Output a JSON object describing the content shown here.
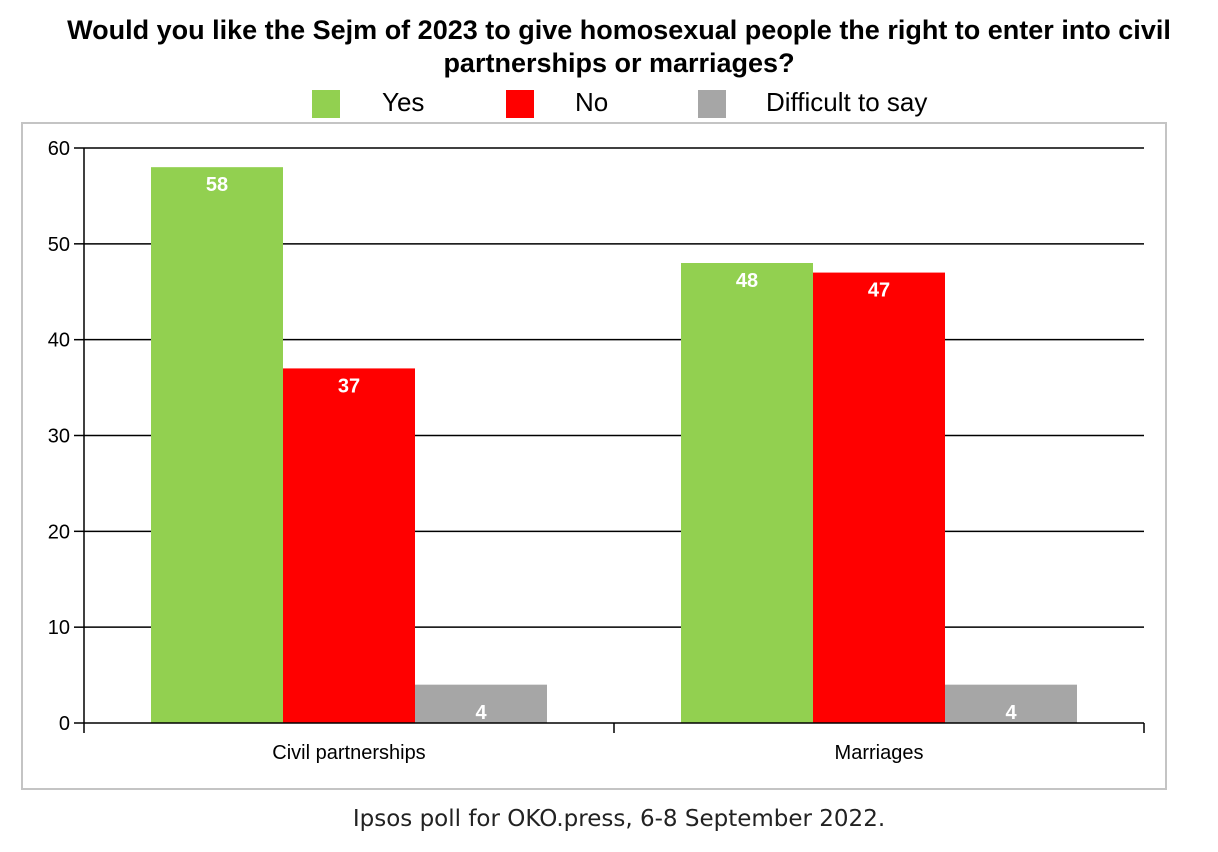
{
  "title": "Would you like the Sejm of 2023 to give homosexual people the right to enter into civil partnerships or marriages?",
  "footnote": "Ipsos poll for OKO.press, 6-8 September 2022.",
  "colors": {
    "yes": "#92d050",
    "no": "#ff0000",
    "difficult": "#a6a6a6",
    "grid": "#000000",
    "frame": "#c4c4c4"
  },
  "chart_data": {
    "type": "bar",
    "title": "Would you like the Sejm of 2023 to give homosexual people the right to enter into civil partnerships or marriages?",
    "categories": [
      "Civil partnerships",
      "Marriages"
    ],
    "series": [
      {
        "name": "Yes",
        "values": [
          58,
          48
        ],
        "color": "#92d050"
      },
      {
        "name": "No",
        "values": [
          37,
          47
        ],
        "color": "#ff0000"
      },
      {
        "name": "Difficult to say",
        "values": [
          4,
          4
        ],
        "color": "#a6a6a6"
      }
    ],
    "xlabel": "",
    "ylabel": "",
    "ylim": [
      0,
      60
    ],
    "yticks": [
      0,
      10,
      20,
      30,
      40,
      50,
      60
    ],
    "grid": true,
    "legend_position": "top",
    "data_labels": true
  }
}
